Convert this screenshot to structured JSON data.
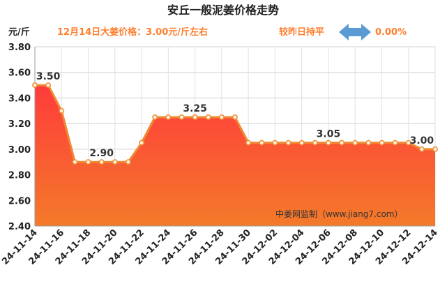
{
  "chart_data": {
    "type": "area",
    "title": "安丘一般泥姜价格走势",
    "unit_label": "元/斤",
    "info_text": "12月14日大姜价格：3.00元/斤左右",
    "change_text": "较昨日持平",
    "change_value": "0.00%",
    "watermark": "中姜网监制（www.jiang7.com）",
    "ylim": [
      2.4,
      3.8
    ],
    "yticks": [
      "2.40",
      "2.60",
      "2.80",
      "3.00",
      "3.20",
      "3.40",
      "3.60",
      "3.80"
    ],
    "x": [
      "24-11-14",
      "24-11-15",
      "24-11-16",
      "24-11-17",
      "24-11-18",
      "24-11-19",
      "24-11-20",
      "24-11-21",
      "24-11-22",
      "24-11-23",
      "24-11-24",
      "24-11-25",
      "24-11-26",
      "24-11-27",
      "24-11-28",
      "24-11-29",
      "24-11-30",
      "24-12-01",
      "24-12-02",
      "24-12-03",
      "24-12-04",
      "24-12-05",
      "24-12-06",
      "24-12-07",
      "24-12-08",
      "24-12-09",
      "24-12-10",
      "24-12-11",
      "24-12-12",
      "24-12-13",
      "24-12-14"
    ],
    "xtick_labels": [
      "24-11-14",
      "24-11-16",
      "24-11-18",
      "24-11-20",
      "24-11-22",
      "24-11-24",
      "24-11-26",
      "24-11-28",
      "24-11-30",
      "24-12-02",
      "24-12-04",
      "24-12-06",
      "24-12-08",
      "24-12-10",
      "24-12-12",
      "24-12-14"
    ],
    "values": [
      3.5,
      3.5,
      3.3,
      2.9,
      2.9,
      2.9,
      2.9,
      2.9,
      3.05,
      3.25,
      3.25,
      3.25,
      3.25,
      3.25,
      3.25,
      3.25,
      3.05,
      3.05,
      3.05,
      3.05,
      3.05,
      3.05,
      3.05,
      3.05,
      3.05,
      3.05,
      3.05,
      3.05,
      3.05,
      3.0,
      3.0
    ],
    "data_labels": [
      {
        "index": 1,
        "text": "3.50"
      },
      {
        "index": 5,
        "text": "2.90"
      },
      {
        "index": 12,
        "text": "3.25"
      },
      {
        "index": 22,
        "text": "3.05"
      },
      {
        "index": 29,
        "text": "3.00"
      }
    ],
    "grid": true,
    "colors": {
      "fill_top": "#ff3b3b",
      "fill_bottom": "#f47a2a",
      "line": "#ef8a34",
      "marker_fill": "#fff3dc",
      "arrow": "#5b9bd5",
      "info": "#ff7e2e"
    }
  }
}
